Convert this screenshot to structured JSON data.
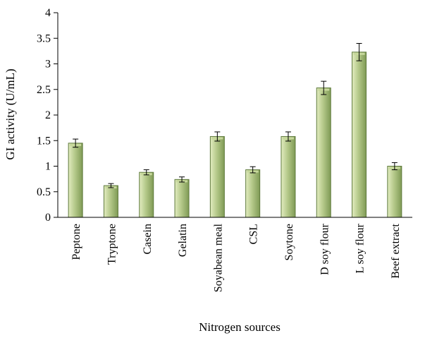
{
  "chart_data": {
    "type": "bar",
    "title": "",
    "xlabel": "Nitrogen sources",
    "ylabel": "GI activity (U/mL)",
    "ylim": [
      0,
      4
    ],
    "yticks": [
      0,
      0.5,
      1,
      1.5,
      2,
      2.5,
      3,
      3.5,
      4
    ],
    "grid": false,
    "legend": "none",
    "categories": [
      "Peptone",
      "Tryptone",
      "Casein",
      "Gelatin",
      "Soyabean meal",
      "CSL",
      "Soytone",
      "D soy flour",
      "L soy flour",
      "Beef extract"
    ],
    "series": [
      {
        "values": [
          1.45,
          0.62,
          0.88,
          0.74,
          1.58,
          0.93,
          1.58,
          2.53,
          3.23,
          1.0
        ],
        "errors": [
          0.08,
          0.04,
          0.05,
          0.05,
          0.09,
          0.06,
          0.09,
          0.13,
          0.17,
          0.07
        ]
      }
    ],
    "colors": {
      "bar_light": "#e2ecc0",
      "bar_mid": "#b5c98a",
      "bar_dark": "#7f9a55",
      "bar_edge": "#5f7a3c",
      "axis": "#000000"
    }
  }
}
